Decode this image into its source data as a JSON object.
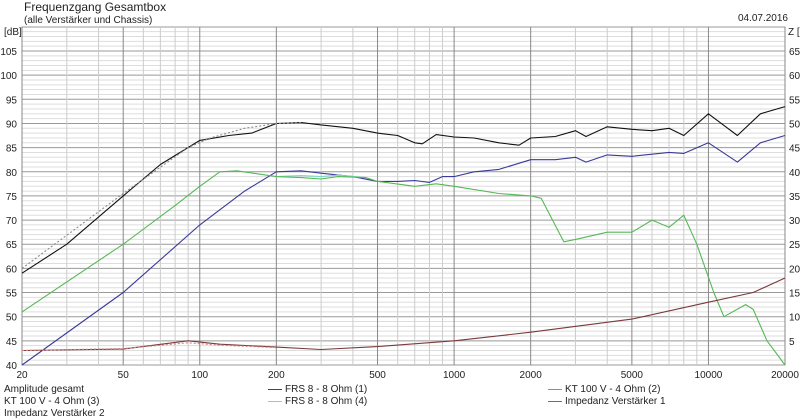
{
  "header": {
    "title": "Frequenzgang Gesamtbox",
    "subtitle": "(alle Verstärker und Chassis)",
    "date": "04.07.2016"
  },
  "chart_data": {
    "type": "line",
    "title": "Frequenzgang Gesamtbox",
    "subtitle": "(alle Verstärker und Chassis)",
    "xscale": "log",
    "xlim": [
      20,
      20000
    ],
    "xticks": [
      20,
      50,
      100,
      200,
      500,
      1000,
      2000,
      5000,
      10000,
      20000
    ],
    "ylabel": "[dB]",
    "ylim": [
      40,
      110
    ],
    "yticks": [
      40,
      45,
      50,
      55,
      60,
      65,
      70,
      75,
      80,
      85,
      90,
      95,
      100,
      105
    ],
    "y2label": "Z [",
    "y2lim": [
      0,
      70
    ],
    "y2ticks": [
      0,
      5,
      10,
      15,
      20,
      25,
      30,
      35,
      40,
      45,
      50,
      55,
      60,
      65
    ],
    "grid": true,
    "legend_position": "bottom",
    "legend": [
      "Amplitude gesamt",
      "FRS 8 - 8 Ohm (1)",
      "KT 100 V - 4 Ohm (2)",
      "KT 100 V - 4 Ohm (3)",
      "FRS 8 - 8 Ohm (4)",
      "Impedanz Verstärker 1",
      "Impedanz Verstärker 2"
    ],
    "series": [
      {
        "name": "Amplitude gesamt",
        "color": "#111111",
        "axis": "left",
        "points": [
          [
            20,
            59
          ],
          [
            30,
            65
          ],
          [
            50,
            75
          ],
          [
            70,
            81.5
          ],
          [
            100,
            86.5
          ],
          [
            130,
            87.5
          ],
          [
            160,
            88
          ],
          [
            200,
            90
          ],
          [
            250,
            90.2
          ],
          [
            300,
            89.7
          ],
          [
            400,
            89
          ],
          [
            500,
            88
          ],
          [
            600,
            87.5
          ],
          [
            700,
            86
          ],
          [
            750,
            85.8
          ],
          [
            850,
            87.7
          ],
          [
            1000,
            87.2
          ],
          [
            1200,
            87
          ],
          [
            1500,
            86
          ],
          [
            1800,
            85.5
          ],
          [
            2000,
            87
          ],
          [
            2500,
            87.3
          ],
          [
            3000,
            88.5
          ],
          [
            3300,
            87.3
          ],
          [
            4000,
            89.3
          ],
          [
            5000,
            88.8
          ],
          [
            6000,
            88.5
          ],
          [
            7000,
            89
          ],
          [
            8000,
            87.5
          ],
          [
            10000,
            92
          ],
          [
            13000,
            87.5
          ],
          [
            16000,
            92
          ],
          [
            20000,
            93.5
          ]
        ]
      },
      {
        "color": "#888888",
        "dashed": true,
        "axis": "left",
        "points": [
          [
            20,
            60
          ],
          [
            50,
            75.5
          ],
          [
            90,
            85
          ],
          [
            110,
            87
          ],
          [
            150,
            89
          ],
          [
            200,
            90
          ],
          [
            250,
            90.2
          ]
        ]
      },
      {
        "name": "FRS 8 - 8 Ohm (1)",
        "color": "#3a3a9a",
        "axis": "left",
        "points": [
          [
            20,
            40
          ],
          [
            50,
            55
          ],
          [
            100,
            69
          ],
          [
            150,
            76
          ],
          [
            200,
            80
          ],
          [
            250,
            80.2
          ],
          [
            300,
            79.7
          ],
          [
            400,
            79
          ],
          [
            500,
            78
          ],
          [
            600,
            78
          ],
          [
            700,
            78.2
          ],
          [
            800,
            77.8
          ],
          [
            900,
            79
          ],
          [
            1000,
            79
          ],
          [
            1200,
            80
          ],
          [
            1500,
            80.5
          ],
          [
            2000,
            82.5
          ],
          [
            2500,
            82.5
          ],
          [
            3000,
            83
          ],
          [
            3300,
            82
          ],
          [
            4000,
            83.5
          ],
          [
            5000,
            83.2
          ],
          [
            7000,
            84
          ],
          [
            8000,
            83.8
          ],
          [
            10000,
            86
          ],
          [
            13000,
            82
          ],
          [
            16000,
            86
          ],
          [
            20000,
            87.5
          ]
        ]
      },
      {
        "name": "FRS 8 - 8 Ohm (4)",
        "color": "#7fd6c8",
        "axis": "left",
        "points": [
          [
            200,
            79
          ],
          [
            250,
            79.2
          ],
          [
            300,
            79
          ],
          [
            350,
            79.3
          ],
          [
            450,
            78.8
          ]
        ]
      },
      {
        "name": "KT 100 V - 4 Ohm (2)",
        "color": "#55b855",
        "axis": "left",
        "points": [
          [
            20,
            51
          ],
          [
            50,
            65
          ],
          [
            80,
            73
          ],
          [
            100,
            77
          ],
          [
            120,
            80
          ],
          [
            140,
            80.2
          ],
          [
            200,
            79
          ],
          [
            250,
            78.8
          ],
          [
            300,
            78.5
          ],
          [
            350,
            79
          ],
          [
            450,
            78.8
          ],
          [
            500,
            78
          ],
          [
            700,
            77
          ],
          [
            850,
            77.5
          ],
          [
            1000,
            77
          ],
          [
            1500,
            75.5
          ],
          [
            2000,
            75
          ],
          [
            2200,
            74.5
          ],
          [
            2700,
            65.5
          ],
          [
            3000,
            66
          ],
          [
            4000,
            67.5
          ],
          [
            5000,
            67.5
          ],
          [
            6000,
            70
          ],
          [
            7000,
            68.5
          ],
          [
            8000,
            71
          ],
          [
            9000,
            65
          ],
          [
            10500,
            55
          ],
          [
            11500,
            50
          ],
          [
            14000,
            52.5
          ],
          [
            15000,
            51.5
          ],
          [
            17000,
            45
          ],
          [
            20000,
            40
          ]
        ]
      },
      {
        "name": "Impedanz Verstärker 1",
        "color": "#7a3a3a",
        "axis": "right",
        "points": [
          [
            20,
            3
          ],
          [
            50,
            3.3
          ],
          [
            90,
            5
          ],
          [
            120,
            4.3
          ],
          [
            200,
            3.7
          ],
          [
            300,
            3.2
          ],
          [
            500,
            3.8
          ],
          [
            1000,
            5
          ],
          [
            2000,
            6.8
          ],
          [
            5000,
            9.5
          ],
          [
            10000,
            13
          ],
          [
            15000,
            15
          ],
          [
            20000,
            18
          ]
        ]
      },
      {
        "color": "#d08080",
        "dashed": true,
        "axis": "right",
        "points": [
          [
            20,
            3
          ],
          [
            50,
            3.4
          ],
          [
            90,
            4.6
          ],
          [
            120,
            4.1
          ],
          [
            200,
            3.6
          ]
        ]
      }
    ]
  }
}
